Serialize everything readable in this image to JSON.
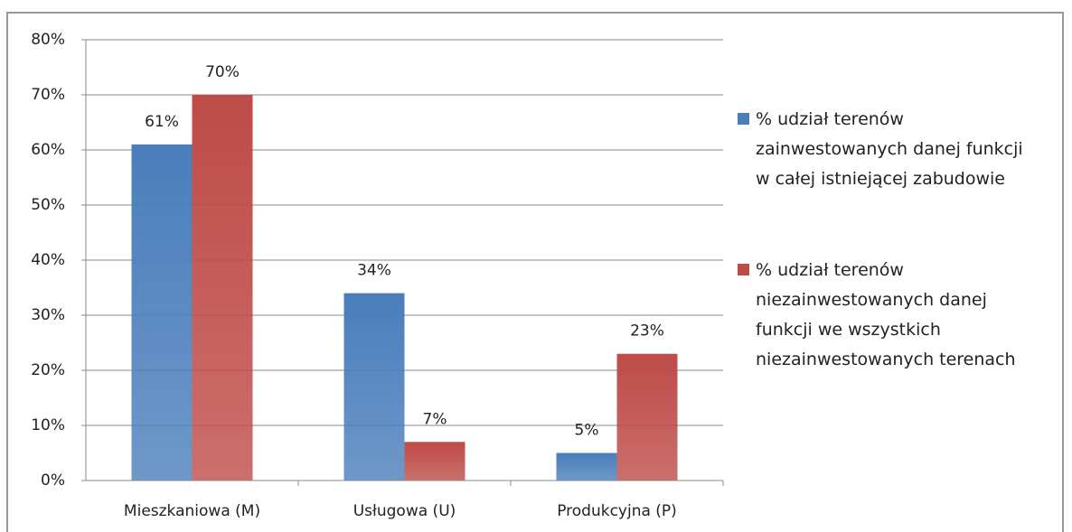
{
  "chart_data": {
    "type": "bar",
    "categories": [
      "Mieszkaniowa (M)",
      "Usługowa (U)",
      "Produkcyjna (P)"
    ],
    "series": [
      {
        "name": "% udział terenów zainwestowanych danej funkcji w całej istniejącej zabudowie",
        "color": "#4a7ebb",
        "values": [
          61,
          34,
          5
        ],
        "value_labels": [
          "61%",
          "34%",
          "5%"
        ]
      },
      {
        "name": "% udział terenów niezainwestowanych danej funkcji we wszystkich niezainwestowanych terenach",
        "color": "#be4b48",
        "values": [
          70,
          7,
          23
        ],
        "value_labels": [
          "70%",
          "7%",
          "23%"
        ]
      }
    ],
    "ylim": [
      0,
      80
    ],
    "yticks": [
      {
        "value": 0,
        "label": "0%"
      },
      {
        "value": 10,
        "label": "10%"
      },
      {
        "value": 20,
        "label": "20%"
      },
      {
        "value": 30,
        "label": "30%"
      },
      {
        "value": 40,
        "label": "40%"
      },
      {
        "value": 50,
        "label": "50%"
      },
      {
        "value": 60,
        "label": "60%"
      },
      {
        "value": 70,
        "label": "70%"
      },
      {
        "value": 80,
        "label": "80%"
      }
    ],
    "grid": true,
    "legend": "right"
  }
}
